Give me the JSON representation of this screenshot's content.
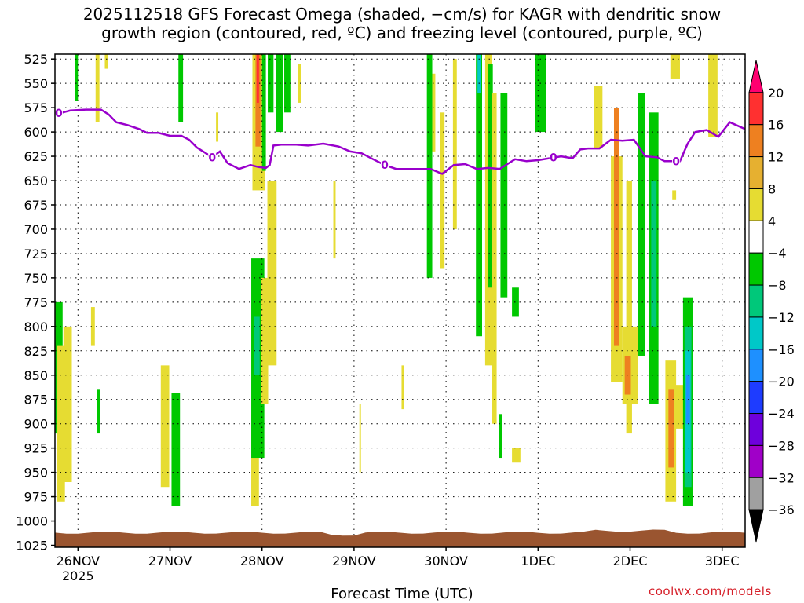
{
  "title_line1": "2025112518 GFS Forecast Omega (shaded, −cm/s) for KAGR with dendritic snow",
  "title_line2": "growth region (contoured, red, ºC) and freezing level (contoured, purple, ºC)",
  "credit": "coolwx.com/models",
  "colors": {
    "freezing_level": "#9900cc",
    "terrain": "#9a5530",
    "grid": "#000000"
  },
  "chart_data": {
    "type": "heatmap",
    "xlabel": "Forecast Time (UTC)",
    "ylabel": "",
    "x_ticks": [
      {
        "label": "26NOV",
        "sub": "2025",
        "hours": 6
      },
      {
        "label": "27NOV",
        "sub": "",
        "hours": 30
      },
      {
        "label": "28NOV",
        "sub": "",
        "hours": 54
      },
      {
        "label": "29NOV",
        "sub": "",
        "hours": 78
      },
      {
        "label": "30NOV",
        "sub": "",
        "hours": 102
      },
      {
        "label": "1DEC",
        "sub": "",
        "hours": 126
      },
      {
        "label": "2DEC",
        "sub": "",
        "hours": 150
      },
      {
        "label": "3DEC",
        "sub": "",
        "hours": 174
      }
    ],
    "x_range_hours": [
      0,
      180
    ],
    "y_ticks": [
      525,
      550,
      575,
      600,
      625,
      650,
      675,
      700,
      725,
      750,
      775,
      800,
      825,
      850,
      875,
      900,
      925,
      950,
      975,
      1000,
      1025
    ],
    "y_range_hpa": [
      520,
      1027
    ],
    "y_scale": "linear",
    "grid": true,
    "colorbar": {
      "labels": [
        "20",
        "16",
        "12",
        "8",
        "4",
        "−4",
        "−8",
        "−12",
        "−16",
        "−20",
        "−24",
        "−28",
        "−32",
        "−36"
      ],
      "colors": [
        "#ff0070",
        "#ff3030",
        "#ee8020",
        "#e6b030",
        "#e6dc32",
        "#ffffff",
        "#00c800",
        "#00c87a",
        "#00c8c8",
        "#1e90ff",
        "#1e3cff",
        "#6e00dc",
        "#a000c8",
        "#a0a0a0",
        "#000000"
      ]
    },
    "freezing_level_label": "0",
    "freezing_level": [
      {
        "h": 0,
        "p": 581
      },
      {
        "h": 2,
        "p": 580
      },
      {
        "h": 4,
        "p": 578
      },
      {
        "h": 8,
        "p": 577
      },
      {
        "h": 12,
        "p": 577
      },
      {
        "h": 14,
        "p": 582
      },
      {
        "h": 16,
        "p": 590
      },
      {
        "h": 19,
        "p": 593
      },
      {
        "h": 22,
        "p": 597
      },
      {
        "h": 24,
        "p": 601
      },
      {
        "h": 27,
        "p": 601
      },
      {
        "h": 30,
        "p": 604
      },
      {
        "h": 33,
        "p": 604
      },
      {
        "h": 35,
        "p": 608
      },
      {
        "h": 37,
        "p": 616
      },
      {
        "h": 39,
        "p": 621
      },
      {
        "h": 41,
        "p": 626
      },
      {
        "h": 43,
        "p": 620
      },
      {
        "h": 45,
        "p": 632
      },
      {
        "h": 48,
        "p": 638
      },
      {
        "h": 51,
        "p": 634
      },
      {
        "h": 53,
        "p": 636
      },
      {
        "h": 55,
        "p": 637
      },
      {
        "h": 56,
        "p": 634
      },
      {
        "h": 57,
        "p": 614
      },
      {
        "h": 59,
        "p": 613
      },
      {
        "h": 63,
        "p": 613
      },
      {
        "h": 66,
        "p": 614
      },
      {
        "h": 70,
        "p": 612
      },
      {
        "h": 74,
        "p": 615
      },
      {
        "h": 77,
        "p": 620
      },
      {
        "h": 80,
        "p": 622
      },
      {
        "h": 83,
        "p": 628
      },
      {
        "h": 86,
        "p": 634
      },
      {
        "h": 89,
        "p": 638
      },
      {
        "h": 92,
        "p": 638
      },
      {
        "h": 95,
        "p": 638
      },
      {
        "h": 98,
        "p": 638
      },
      {
        "h": 101,
        "p": 643
      },
      {
        "h": 104,
        "p": 634
      },
      {
        "h": 107,
        "p": 633
      },
      {
        "h": 110,
        "p": 638
      },
      {
        "h": 113,
        "p": 637
      },
      {
        "h": 116,
        "p": 638
      },
      {
        "h": 118,
        "p": 633
      },
      {
        "h": 120,
        "p": 628
      },
      {
        "h": 123,
        "p": 630
      },
      {
        "h": 126,
        "p": 629
      },
      {
        "h": 129,
        "p": 627
      },
      {
        "h": 132,
        "p": 625
      },
      {
        "h": 135,
        "p": 627
      },
      {
        "h": 137,
        "p": 618
      },
      {
        "h": 139,
        "p": 617
      },
      {
        "h": 142,
        "p": 617
      },
      {
        "h": 145,
        "p": 608
      },
      {
        "h": 148,
        "p": 609
      },
      {
        "h": 151,
        "p": 608
      },
      {
        "h": 154,
        "p": 625
      },
      {
        "h": 157,
        "p": 626
      },
      {
        "h": 159,
        "p": 630
      },
      {
        "h": 161,
        "p": 630
      },
      {
        "h": 163,
        "p": 630
      },
      {
        "h": 165,
        "p": 612
      },
      {
        "h": 167,
        "p": 600
      },
      {
        "h": 170,
        "p": 598
      },
      {
        "h": 173,
        "p": 605
      },
      {
        "h": 176,
        "p": 590
      },
      {
        "h": 180,
        "p": 597
      }
    ],
    "freezing_level_label_hours": [
      1,
      41,
      86,
      130,
      162
    ],
    "shaded_regions": [
      {
        "h0": 5.2,
        "h1": 6.0,
        "p0": 520,
        "p1": 568,
        "color": "#00c800"
      },
      {
        "h0": 10.6,
        "h1": 11.6,
        "p0": 520,
        "p1": 590,
        "color": "#e6dc32"
      },
      {
        "h0": 13.0,
        "h1": 13.8,
        "p0": 520,
        "p1": 535,
        "color": "#e6dc32"
      },
      {
        "h0": 32.2,
        "h1": 33.4,
        "p0": 520,
        "p1": 590,
        "color": "#00c800"
      },
      {
        "h0": 42.0,
        "h1": 42.6,
        "p0": 580,
        "p1": 610,
        "color": "#e6dc32"
      },
      {
        "h0": 51.5,
        "h1": 54.8,
        "p0": 520,
        "p1": 660,
        "color": "#e6dc32"
      },
      {
        "h0": 52.3,
        "h1": 53.6,
        "p0": 520,
        "p1": 615,
        "color": "#ee8020"
      },
      {
        "h0": 52.6,
        "h1": 53.2,
        "p0": 520,
        "p1": 570,
        "color": "#ff3030"
      },
      {
        "h0": 54.0,
        "h1": 55.0,
        "p0": 520,
        "p1": 640,
        "color": "#00c800"
      },
      {
        "h0": 55.5,
        "h1": 57.0,
        "p0": 520,
        "p1": 580,
        "color": "#00c800"
      },
      {
        "h0": 57.6,
        "h1": 59.4,
        "p0": 520,
        "p1": 600,
        "color": "#00c800"
      },
      {
        "h0": 59.8,
        "h1": 61.4,
        "p0": 520,
        "p1": 580,
        "color": "#00c800"
      },
      {
        "h0": 55.4,
        "h1": 57.8,
        "p0": 650,
        "p1": 840,
        "color": "#e6dc32"
      },
      {
        "h0": 63.4,
        "h1": 64.2,
        "p0": 530,
        "p1": 570,
        "color": "#e6dc32"
      },
      {
        "h0": 97.0,
        "h1": 98.4,
        "p0": 520,
        "p1": 750,
        "color": "#00c800"
      },
      {
        "h0": 98.4,
        "h1": 99.2,
        "p0": 540,
        "p1": 620,
        "color": "#e6dc32"
      },
      {
        "h0": 100.4,
        "h1": 101.6,
        "p0": 580,
        "p1": 740,
        "color": "#e6dc32"
      },
      {
        "h0": 103.8,
        "h1": 104.8,
        "p0": 525,
        "p1": 700,
        "color": "#e6dc32"
      },
      {
        "h0": 109.8,
        "h1": 111.4,
        "p0": 520,
        "p1": 810,
        "color": "#00c800"
      },
      {
        "h0": 110.2,
        "h1": 111.0,
        "p0": 520,
        "p1": 560,
        "color": "#00c8c8"
      },
      {
        "h0": 112.2,
        "h1": 114.0,
        "p0": 520,
        "p1": 840,
        "color": "#e6dc32"
      },
      {
        "h0": 113.0,
        "h1": 114.2,
        "p0": 530,
        "p1": 760,
        "color": "#00c800"
      },
      {
        "h0": 114.0,
        "h1": 115.2,
        "p0": 560,
        "p1": 900,
        "color": "#e6dc32"
      },
      {
        "h0": 116.2,
        "h1": 118.0,
        "p0": 560,
        "p1": 770,
        "color": "#00c800"
      },
      {
        "h0": 119.2,
        "h1": 121.0,
        "p0": 760,
        "p1": 790,
        "color": "#00c800"
      },
      {
        "h0": 115.8,
        "h1": 116.6,
        "p0": 890,
        "p1": 935,
        "color": "#00c800"
      },
      {
        "h0": 119.2,
        "h1": 121.4,
        "p0": 925,
        "p1": 940,
        "color": "#e6dc32"
      },
      {
        "h0": 125.2,
        "h1": 128.0,
        "p0": 520,
        "p1": 600,
        "color": "#00c800"
      },
      {
        "h0": 140.6,
        "h1": 142.8,
        "p0": 553,
        "p1": 617,
        "color": "#e6dc32"
      },
      {
        "h0": 145.0,
        "h1": 148.0,
        "p0": 625,
        "p1": 857,
        "color": "#e6dc32"
      },
      {
        "h0": 148.0,
        "h1": 152.0,
        "p0": 800,
        "p1": 880,
        "color": "#e6dc32"
      },
      {
        "h0": 149.0,
        "h1": 150.5,
        "p0": 650,
        "p1": 910,
        "color": "#e6dc32"
      },
      {
        "h0": 145.8,
        "h1": 147.2,
        "p0": 575,
        "p1": 820,
        "color": "#ee8020"
      },
      {
        "h0": 148.6,
        "h1": 150.2,
        "p0": 830,
        "p1": 870,
        "color": "#ee8020"
      },
      {
        "h0": 152.0,
        "h1": 153.8,
        "p0": 560,
        "p1": 830,
        "color": "#00c800"
      },
      {
        "h0": 155.0,
        "h1": 157.4,
        "p0": 580,
        "p1": 880,
        "color": "#00c800"
      },
      {
        "h0": 155.5,
        "h1": 156.9,
        "p0": 650,
        "p1": 800,
        "color": "#00c87a"
      },
      {
        "h0": 160.5,
        "h1": 163.0,
        "p0": 520,
        "p1": 545,
        "color": "#e6dc32"
      },
      {
        "h0": 161.0,
        "h1": 162.0,
        "p0": 660,
        "p1": 670,
        "color": "#e6dc32"
      },
      {
        "h0": 159.2,
        "h1": 162.0,
        "p0": 835,
        "p1": 980,
        "color": "#e6dc32"
      },
      {
        "h0": 160.0,
        "h1": 161.4,
        "p0": 865,
        "p1": 945,
        "color": "#ee8020"
      },
      {
        "h0": 161.8,
        "h1": 164.0,
        "p0": 860,
        "p1": 905,
        "color": "#e6dc32"
      },
      {
        "h0": 163.8,
        "h1": 166.4,
        "p0": 770,
        "p1": 985,
        "color": "#00c800"
      },
      {
        "h0": 164.2,
        "h1": 166.0,
        "p0": 800,
        "p1": 965,
        "color": "#00c87a"
      },
      {
        "h0": 164.4,
        "h1": 165.8,
        "p0": 825,
        "p1": 950,
        "color": "#00c8c8"
      },
      {
        "h0": 164.6,
        "h1": 165.6,
        "p0": 850,
        "p1": 900,
        "color": "#1e90ff"
      },
      {
        "h0": 170.4,
        "h1": 172.8,
        "p0": 520,
        "p1": 605,
        "color": "#e6dc32"
      },
      {
        "h0": 0,
        "h1": 2.0,
        "p0": 775,
        "p1": 910,
        "color": "#00c800"
      },
      {
        "h0": 0.6,
        "h1": 2.6,
        "p0": 820,
        "p1": 980,
        "color": "#e6dc32"
      },
      {
        "h0": 2.2,
        "h1": 4.4,
        "p0": 800,
        "p1": 960,
        "color": "#e6dc32"
      },
      {
        "h0": 9.4,
        "h1": 10.4,
        "p0": 780,
        "p1": 820,
        "color": "#e6dc32"
      },
      {
        "h0": 11.0,
        "h1": 11.8,
        "p0": 865,
        "p1": 910,
        "color": "#00c800"
      },
      {
        "h0": 27.6,
        "h1": 29.8,
        "p0": 840,
        "p1": 965,
        "color": "#e6dc32"
      },
      {
        "h0": 30.4,
        "h1": 32.6,
        "p0": 868,
        "p1": 985,
        "color": "#00c800"
      },
      {
        "h0": 51.2,
        "h1": 53.2,
        "p0": 890,
        "p1": 985,
        "color": "#e6dc32"
      },
      {
        "h0": 51.2,
        "h1": 54.6,
        "p0": 730,
        "p1": 935,
        "color": "#00c800"
      },
      {
        "h0": 51.8,
        "h1": 53.4,
        "p0": 790,
        "p1": 850,
        "color": "#00c87a"
      },
      {
        "h0": 53.8,
        "h1": 55.6,
        "p0": 750,
        "p1": 880,
        "color": "#e6dc32"
      },
      {
        "h0": 72.6,
        "h1": 73.2,
        "p0": 650,
        "p1": 730,
        "color": "#e6dc32"
      },
      {
        "h0": 79.4,
        "h1": 79.8,
        "p0": 880,
        "p1": 950,
        "color": "#e6dc32"
      },
      {
        "h0": 90.4,
        "h1": 91.0,
        "p0": 840,
        "p1": 885,
        "color": "#e6dc32"
      }
    ],
    "terrain_surface_hpa": 1012
  }
}
